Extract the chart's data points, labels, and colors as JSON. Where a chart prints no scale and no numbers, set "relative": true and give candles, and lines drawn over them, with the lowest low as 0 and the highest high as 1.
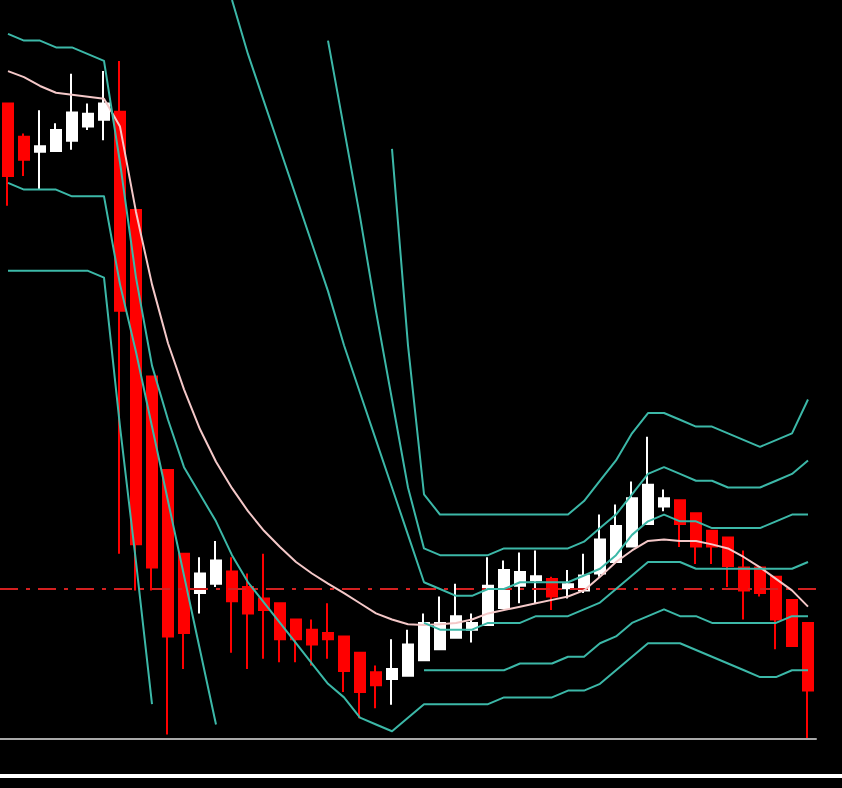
{
  "chart_data": {
    "type": "candlestick",
    "relative": true,
    "marker": "none",
    "line_style": "solid",
    "categories": [
      null,
      null,
      null,
      null,
      null,
      null,
      null,
      null,
      null,
      null,
      null,
      null,
      null,
      null,
      null,
      null,
      null,
      null,
      null,
      null,
      null,
      null,
      null,
      null,
      null,
      null,
      null,
      null,
      null,
      null,
      null,
      null,
      null,
      null,
      null,
      null,
      null,
      null,
      null,
      null,
      null,
      null,
      null,
      null,
      null,
      null,
      null,
      null,
      null,
      null,
      null
    ],
    "ohlc": [
      [
        0.937,
        0.937,
        0.786,
        0.83
      ],
      [
        0.888,
        0.893,
        0.83,
        0.854
      ],
      [
        0.866,
        0.927,
        0.811,
        0.874
      ],
      [
        0.867,
        0.908,
        0.867,
        0.898
      ],
      [
        0.882,
        0.981,
        0.869,
        0.924
      ],
      [
        0.903,
        0.937,
        0.898,
        0.922
      ],
      [
        0.913,
        0.985,
        0.883,
        0.937
      ],
      [
        0.925,
        1,
        0.272,
        0.631
      ],
      [
        0.78,
        0.78,
        0.218,
        0.286
      ],
      [
        0.534,
        0.534,
        0.218,
        0.252
      ],
      [
        0.396,
        0.396,
        0.005,
        0.15
      ],
      [
        0.272,
        0.272,
        0.102,
        0.155
      ],
      [
        0.214,
        0.267,
        0.184,
        0.243
      ],
      [
        0.228,
        0.291,
        0.223,
        0.262
      ],
      [
        0.246,
        0.267,
        0.126,
        0.202
      ],
      [
        0.223,
        0.243,
        0.102,
        0.184
      ],
      [
        0.206,
        0.272,
        0.117,
        0.189
      ],
      [
        0.199,
        0.199,
        0.112,
        0.146
      ],
      [
        0.175,
        0.175,
        0.112,
        0.146
      ],
      [
        0.16,
        0.175,
        0.107,
        0.138
      ],
      [
        0.155,
        0.199,
        0.117,
        0.146
      ],
      [
        0.15,
        0.15,
        0.068,
        0.099
      ],
      [
        0.126,
        0.126,
        0.029,
        0.068
      ],
      [
        0.097,
        0.107,
        0.044,
        0.078
      ],
      [
        0.087,
        0.146,
        0.049,
        0.102
      ],
      [
        0.092,
        0.16,
        0.092,
        0.138
      ],
      [
        0.115,
        0.184,
        0.115,
        0.17
      ],
      [
        0.131,
        0.209,
        0.131,
        0.17
      ],
      [
        0.148,
        0.228,
        0.148,
        0.18
      ],
      [
        0.16,
        0.184,
        0.141,
        0.17
      ],
      [
        0.167,
        0.267,
        0.167,
        0.225
      ],
      [
        0.192,
        0.262,
        0.192,
        0.248
      ],
      [
        0.225,
        0.274,
        0.199,
        0.245
      ],
      [
        0.233,
        0.277,
        0.199,
        0.239
      ],
      [
        0.235,
        0.238,
        0.189,
        0.209
      ],
      [
        0.221,
        0.248,
        0.206,
        0.227
      ],
      [
        0.218,
        0.272,
        0.214,
        0.24
      ],
      [
        0.243,
        0.33,
        0.238,
        0.293
      ],
      [
        0.26,
        0.345,
        0.26,
        0.313
      ],
      [
        0.283,
        0.379,
        0.283,
        0.354
      ],
      [
        0.316,
        0.445,
        0.316,
        0.374
      ],
      [
        0.342,
        0.367,
        0.335,
        0.354
      ],
      [
        0.351,
        0.351,
        0.282,
        0.316
      ],
      [
        0.332,
        0.332,
        0.257,
        0.283
      ],
      [
        0.306,
        0.306,
        0.257,
        0.283
      ],
      [
        0.296,
        0.296,
        0.223,
        0.254
      ],
      [
        0.252,
        0.277,
        0.175,
        0.218
      ],
      [
        0.252,
        0.252,
        0.209,
        0.214
      ],
      [
        0.238,
        0.238,
        0.131,
        0.175
      ],
      [
        0.204,
        0.204,
        0.136,
        0.136
      ],
      [
        0.17,
        0.17,
        0,
        0.07
      ]
    ],
    "colors": [
      "#ff0000",
      "#ff0000",
      "#ffffff",
      "#ffffff",
      "#ffffff",
      "#ffffff",
      "#ffffff",
      "#ff0000",
      "#ff0000",
      "#ff0000",
      "#ff0000",
      "#ff0000",
      "#ffffff",
      "#ffffff",
      "#ff0000",
      "#ff0000",
      "#ff0000",
      "#ff0000",
      "#ff0000",
      "#ff0000",
      "#ff0000",
      "#ff0000",
      "#ff0000",
      "#ff0000",
      "#ffffff",
      "#ffffff",
      "#ffffff",
      "#ffffff",
      "#ffffff",
      "#ffffff",
      "#ffffff",
      "#ffffff",
      "#ffffff",
      "#ffffff",
      "#ff0000",
      "#ffffff",
      "#ffffff",
      "#ffffff",
      "#ffffff",
      "#ffffff",
      "#ffffff",
      "#ffffff",
      "#ff0000",
      "#ff0000",
      "#ff0000",
      "#ff0000",
      "#ff0000",
      "#ff0000",
      "#ff0000",
      "#ff0000",
      "#ff0000"
    ],
    "series": [
      {
        "type": "line",
        "color": "#f4c8c8",
        "values": [
          0.985,
          0.976,
          0.963,
          0.953,
          0.95,
          0.947,
          0.944,
          0.903,
          0.777,
          0.67,
          0.583,
          0.515,
          0.456,
          0.408,
          0.369,
          0.335,
          0.306,
          0.282,
          0.26,
          0.243,
          0.228,
          0.214,
          0.199,
          0.184,
          0.175,
          0.168,
          0.167,
          0.168,
          0.17,
          0.175,
          0.184,
          0.189,
          0.194,
          0.199,
          0.204,
          0.209,
          0.218,
          0.238,
          0.26,
          0.277,
          0.291,
          0.293,
          0.291,
          0.291,
          0.286,
          0.28,
          0.267,
          0.252,
          0.235,
          0.218,
          0.194
        ]
      },
      {
        "type": "line",
        "color": "#3cb8a8",
        "values": [
          null,
          null,
          null,
          null,
          null,
          null,
          null,
          null,
          null,
          null,
          null,
          null,
          null,
          null,
          null,
          null,
          null,
          null,
          null,
          null,
          null,
          null,
          null,
          null,
          0.87,
          0.58,
          0.36,
          0.33,
          0.33,
          0.33,
          0.33,
          0.33,
          0.33,
          0.33,
          0.33,
          0.33,
          0.35,
          0.38,
          0.41,
          0.45,
          0.48,
          0.48,
          0.47,
          0.46,
          0.46,
          0.45,
          0.44,
          0.43,
          0.44,
          0.45,
          0.5
        ]
      },
      {
        "type": "line",
        "color": "#3cb8a8",
        "values": [
          null,
          null,
          null,
          null,
          null,
          null,
          null,
          null,
          null,
          null,
          null,
          null,
          null,
          null,
          null,
          null,
          null,
          null,
          null,
          null,
          1.03,
          0.9,
          0.77,
          0.63,
          0.5,
          0.37,
          0.28,
          0.27,
          0.27,
          0.27,
          0.27,
          0.28,
          0.28,
          0.28,
          0.28,
          0.28,
          0.29,
          0.31,
          0.33,
          0.36,
          0.39,
          0.4,
          0.39,
          0.38,
          0.38,
          0.37,
          0.37,
          0.37,
          0.38,
          0.39,
          0.41
        ]
      },
      {
        "type": "line",
        "color": "#3cb8a8",
        "values": [
          null,
          null,
          null,
          null,
          null,
          null,
          null,
          null,
          null,
          null,
          null,
          null,
          null,
          null,
          1.09,
          1.01,
          0.94,
          0.87,
          0.8,
          0.73,
          0.66,
          0.58,
          0.51,
          0.44,
          0.37,
          0.3,
          0.23,
          0.22,
          0.21,
          0.21,
          0.22,
          0.22,
          0.23,
          0.23,
          0.23,
          0.23,
          0.24,
          0.25,
          0.27,
          0.3,
          0.32,
          0.33,
          0.32,
          0.32,
          0.31,
          0.31,
          0.31,
          0.31,
          0.32,
          0.33,
          0.33
        ]
      },
      {
        "type": "line",
        "color": "#3cb8a8",
        "values": [
          1.04,
          1.03,
          1.03,
          1.02,
          1.02,
          1.01,
          1.0,
          0.85,
          0.68,
          0.55,
          0.47,
          0.4,
          0.36,
          0.32,
          0.27,
          0.23,
          0.2,
          0.17,
          0.14,
          0.11,
          0.08,
          0.06,
          0.03,
          0.02,
          0.01,
          0.03,
          0.05,
          0.05,
          0.05,
          0.05,
          0.05,
          0.06,
          0.06,
          0.06,
          0.06,
          0.07,
          0.07,
          0.08,
          0.1,
          0.12,
          0.14,
          0.14,
          0.14,
          0.13,
          0.12,
          0.11,
          0.1,
          0.09,
          0.09,
          0.1,
          0.1
        ]
      },
      {
        "type": "line",
        "color": "#3cb8a8",
        "values": [
          null,
          null,
          null,
          null,
          null,
          null,
          null,
          null,
          null,
          null,
          null,
          null,
          null,
          null,
          null,
          null,
          null,
          null,
          null,
          null,
          null,
          null,
          null,
          null,
          null,
          null,
          0.17,
          0.16,
          0.16,
          0.16,
          0.17,
          0.17,
          0.17,
          0.18,
          0.18,
          0.18,
          0.19,
          0.2,
          0.22,
          0.24,
          0.26,
          0.26,
          0.26,
          0.25,
          0.25,
          0.25,
          0.25,
          0.25,
          0.25,
          0.25,
          0.26
        ]
      },
      {
        "type": "line",
        "color": "#3cb8a8",
        "values": [
          null,
          null,
          null,
          null,
          null,
          null,
          null,
          null,
          null,
          null,
          null,
          null,
          null,
          null,
          null,
          null,
          null,
          null,
          null,
          null,
          null,
          null,
          null,
          null,
          null,
          null,
          0.1,
          0.1,
          0.1,
          0.1,
          0.1,
          0.1,
          0.11,
          0.11,
          0.11,
          0.12,
          0.12,
          0.14,
          0.15,
          0.17,
          0.18,
          0.19,
          0.18,
          0.18,
          0.17,
          0.17,
          0.17,
          0.17,
          0.17,
          0.18,
          0.18
        ]
      },
      {
        "type": "line",
        "color": "#3cb8a8",
        "values": [
          0.82,
          0.81,
          0.81,
          0.81,
          0.8,
          0.8,
          0.8,
          0.67,
          0.57,
          0.46,
          0.35,
          0.24,
          0.13,
          0.02,
          null,
          null,
          null,
          null,
          null,
          null,
          null,
          null,
          null,
          null,
          null,
          null,
          null,
          null,
          null,
          null,
          null,
          null,
          null,
          null,
          null,
          null,
          null,
          null,
          null,
          null,
          null,
          null,
          null,
          null,
          null,
          null,
          null,
          null,
          null,
          null,
          null
        ]
      },
      {
        "type": "line",
        "color": "#3cb8a8",
        "values": [
          0.69,
          0.69,
          0.69,
          0.69,
          0.69,
          0.69,
          0.68,
          0.46,
          0.26,
          0.05,
          null,
          null,
          null,
          null,
          null,
          null,
          null,
          null,
          null,
          null,
          null,
          null,
          null,
          null,
          null,
          null,
          null,
          null,
          null,
          null,
          null,
          null,
          null,
          null,
          null,
          null,
          null,
          null,
          null,
          null,
          null,
          null,
          null,
          null,
          null,
          null,
          null,
          null,
          null,
          null,
          null
        ]
      }
    ],
    "ref_lines": [
      {
        "axis": "y",
        "value": 0.223,
        "color": "#d42020",
        "line_style": "dashed"
      }
    ]
  }
}
